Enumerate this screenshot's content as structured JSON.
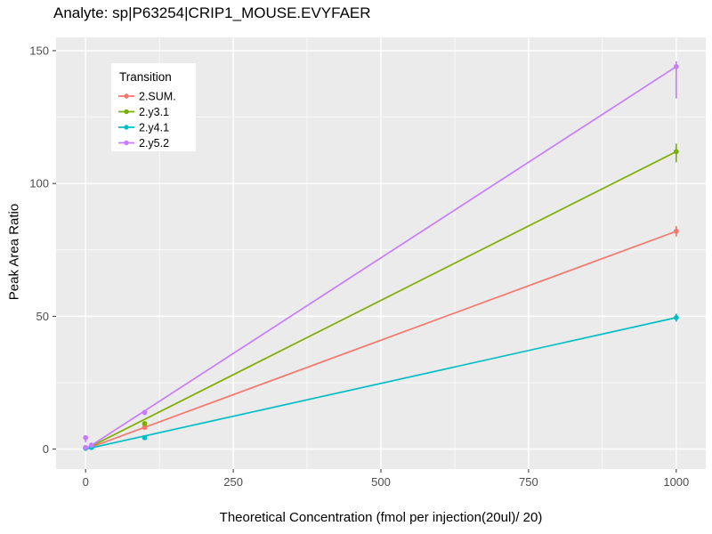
{
  "title": "Analyte: sp|P63254|CRIP1_MOUSE.EVYFAER",
  "chart_data": {
    "type": "line",
    "title": "Analyte: sp|P63254|CRIP1_MOUSE.EVYFAER",
    "xlabel": "Theoretical Concentration (fmol per injection(20ul)/ 20)",
    "ylabel": "Peak Area Ratio",
    "xlim": [
      -50,
      1050
    ],
    "ylim": [
      -7.5,
      155
    ],
    "x_ticks": [
      0,
      250,
      500,
      750,
      1000
    ],
    "y_ticks": [
      0,
      50,
      100,
      150
    ],
    "grid": true,
    "panel_bg": "#EBEBEB",
    "grid_color": "#FFFFFF",
    "tick_color": "#333333",
    "tick_label_color": "#4D4D4D",
    "legend": {
      "title": "Transition",
      "position": "inside-top-left",
      "bg": "#FFFFFF"
    },
    "series": [
      {
        "name": "2.SUM.",
        "color": "#F8766D",
        "line": {
          "x0": 0,
          "y0": 0,
          "x1": 1000,
          "y1": 82
        },
        "points": [
          {
            "x": 0,
            "y": 0.4
          },
          {
            "x": 10,
            "y": 0.9
          },
          {
            "x": 100,
            "y": 8.2,
            "err_lo": 7.3,
            "err_hi": 9.1
          },
          {
            "x": 1000,
            "y": 82,
            "err_lo": 80,
            "err_hi": 84
          }
        ]
      },
      {
        "name": "2.y3.1",
        "color": "#7CAE00",
        "line": {
          "x0": 0,
          "y0": 0,
          "x1": 1000,
          "y1": 112
        },
        "points": [
          {
            "x": 0,
            "y": 0.5
          },
          {
            "x": 10,
            "y": 1.2
          },
          {
            "x": 100,
            "y": 9.6,
            "err_lo": 8.7,
            "err_hi": 10.5
          },
          {
            "x": 1000,
            "y": 112,
            "err_lo": 108,
            "err_hi": 115
          }
        ]
      },
      {
        "name": "2.y4.1",
        "color": "#00BFC4",
        "line": {
          "x0": 0,
          "y0": 0,
          "x1": 1000,
          "y1": 49.5
        },
        "points": [
          {
            "x": 0,
            "y": 0.3
          },
          {
            "x": 10,
            "y": 0.6
          },
          {
            "x": 100,
            "y": 4.3,
            "err_lo": 3.7,
            "err_hi": 4.9
          },
          {
            "x": 1000,
            "y": 49.5,
            "err_lo": 48,
            "err_hi": 51
          }
        ]
      },
      {
        "name": "2.y5.2",
        "color": "#C77CFF",
        "line": {
          "x0": 0,
          "y0": 0,
          "x1": 1000,
          "y1": 144
        },
        "points": [
          {
            "x": 0,
            "y": 0.6
          },
          {
            "x": 0,
            "y": 4.3,
            "err_lo": 2.6,
            "err_hi": 5.2
          },
          {
            "x": 10,
            "y": 1.5
          },
          {
            "x": 100,
            "y": 13.8,
            "err_lo": 12.8,
            "err_hi": 14.8
          },
          {
            "x": 1000,
            "y": 144,
            "err_lo": 132,
            "err_hi": 146
          }
        ]
      }
    ]
  }
}
